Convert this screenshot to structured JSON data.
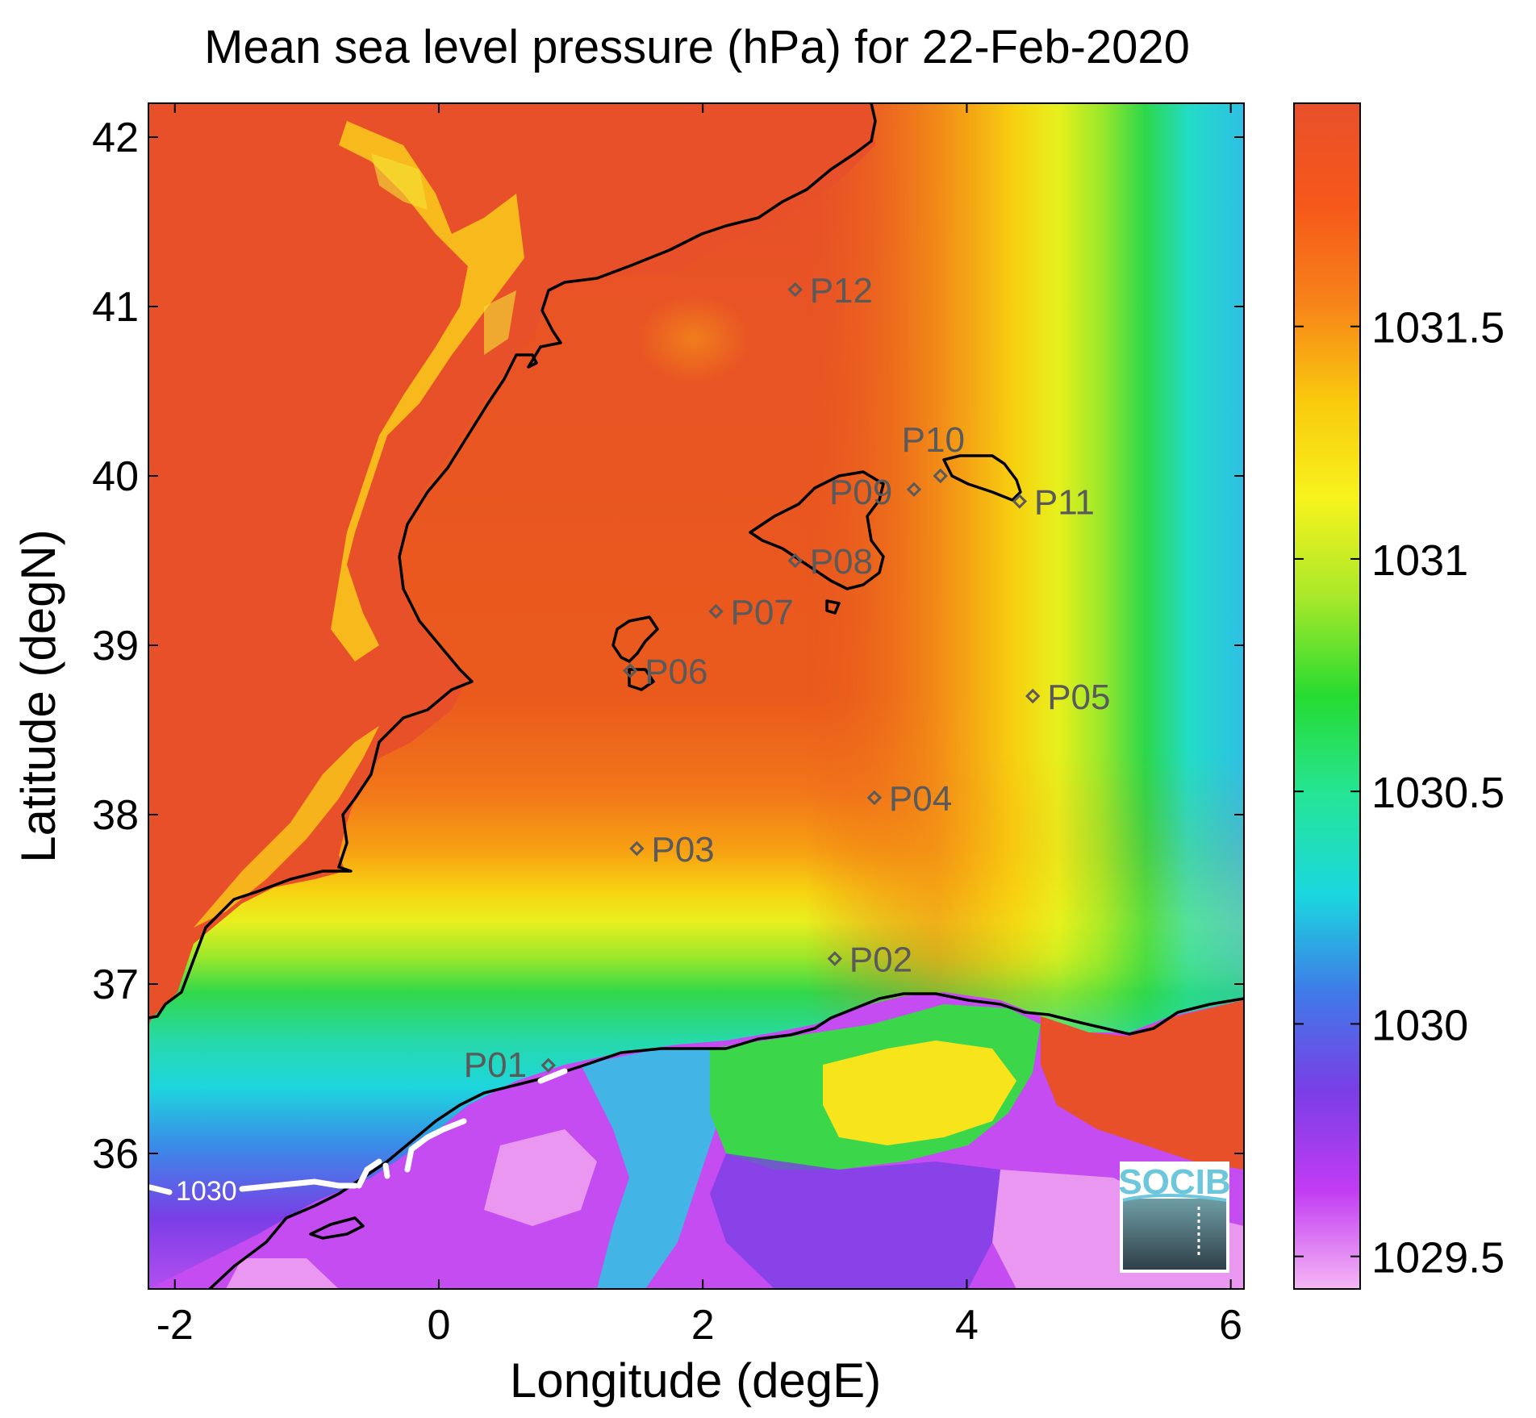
{
  "title": "Mean sea level pressure (hPa) for 22-Feb-2020",
  "x_axis": {
    "label": "Longitude (degE)",
    "range": [
      -2.2,
      6.1
    ],
    "ticks": [
      {
        "value": -2,
        "label": "-2"
      },
      {
        "value": 0,
        "label": "0"
      },
      {
        "value": 2,
        "label": "2"
      },
      {
        "value": 4,
        "label": "4"
      },
      {
        "value": 6,
        "label": "6"
      }
    ]
  },
  "y_axis": {
    "label": "Latitude (degN)",
    "range": [
      35.2,
      42.2
    ],
    "ticks": [
      {
        "value": 36,
        "label": "36"
      },
      {
        "value": 37,
        "label": "37"
      },
      {
        "value": 38,
        "label": "38"
      },
      {
        "value": 39,
        "label": "39"
      },
      {
        "value": 40,
        "label": "40"
      },
      {
        "value": 41,
        "label": "41"
      },
      {
        "value": 42,
        "label": "42"
      }
    ]
  },
  "colorbar": {
    "range": [
      1029.43,
      1031.98
    ],
    "ticks": [
      {
        "value": 1029.5,
        "label": "1029.5"
      },
      {
        "value": 1030,
        "label": "1030"
      },
      {
        "value": 1030.5,
        "label": "1030.5"
      },
      {
        "value": 1031,
        "label": "1031"
      },
      {
        "value": 1031.5,
        "label": "1031.5"
      }
    ],
    "colormap": [
      "#f5b7f5",
      "#c23cf3",
      "#7a3ee6",
      "#3f7ae8",
      "#1ad8df",
      "#25e596",
      "#26db30",
      "#a8e82a",
      "#f7f31c",
      "#f9c90d",
      "#f7821a",
      "#f6571a",
      "#e8502a"
    ]
  },
  "chart_data": {
    "type": "heatmap",
    "variable": "Mean sea level pressure (hPa)",
    "date": "22-Feb-2020",
    "contours": [
      {
        "value": 1030,
        "label": "1030"
      }
    ],
    "stations": [
      {
        "id": "P01",
        "lon": 0.83,
        "lat": 36.52
      },
      {
        "id": "P02",
        "lon": 3.0,
        "lat": 37.15
      },
      {
        "id": "P03",
        "lon": 1.5,
        "lat": 37.8
      },
      {
        "id": "P04",
        "lon": 3.3,
        "lat": 38.1
      },
      {
        "id": "P05",
        "lon": 4.5,
        "lat": 38.7
      },
      {
        "id": "P06",
        "lon": 1.45,
        "lat": 38.85
      },
      {
        "id": "P07",
        "lon": 2.1,
        "lat": 39.2
      },
      {
        "id": "P08",
        "lon": 2.7,
        "lat": 39.5
      },
      {
        "id": "P09",
        "lon": 3.6,
        "lat": 39.92
      },
      {
        "id": "P10",
        "lon": 3.8,
        "lat": 40.0
      },
      {
        "id": "P11",
        "lon": 4.4,
        "lat": 39.85
      },
      {
        "id": "P12",
        "lon": 2.7,
        "lat": 41.1
      }
    ]
  },
  "logo": {
    "text": "SOCIB"
  }
}
